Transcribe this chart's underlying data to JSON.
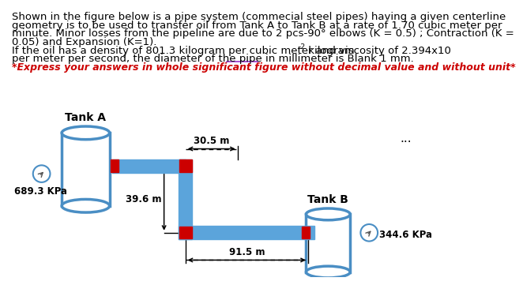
{
  "text_line1": "Shown in the figure below is a pipe system (commecial steel pipes) having a given centerline",
  "text_line2": "geometry is to be used to transfer oil from Tank A to Tank B at a rate of 1.70 cubic meter per",
  "text_line3": "minute. Minor losses from the pipeline are due to 2 pcs-90° elbows (K = 0.5) ; Contraction (K =",
  "text_line4": "0.05) and Expansion (K=1).",
  "text_line5a": "If the oil has a density of 801.3 kilogram per cubic meter and viscosity of 2.394x10",
  "text_line5b": "-2",
  "text_line5c": " kilogram",
  "text_line6": "per meter per second, the diameter of the pipe in millimeter is Blank 1 mm.",
  "red_line": "*Express your answers in whole significant figure without decimal value and without unit*",
  "tank_a_label": "Tank A",
  "tank_b_label": "Tank B",
  "pressure_a": "689.3 KPa",
  "pressure_b": "344.6 KPa",
  "dim_30_5": "30.5 m",
  "dim_39_6": "39.6 m",
  "dim_91_5": "91.5 m",
  "pipe_color": "#5ba4db",
  "tank_stroke": "#4a8ec4",
  "elbow_color": "#cc0000",
  "bg_color": "#ffffff",
  "dots": "...",
  "underline_color": "#9933cc",
  "text_fontsize": 9.5,
  "red_fontsize": 9.0
}
